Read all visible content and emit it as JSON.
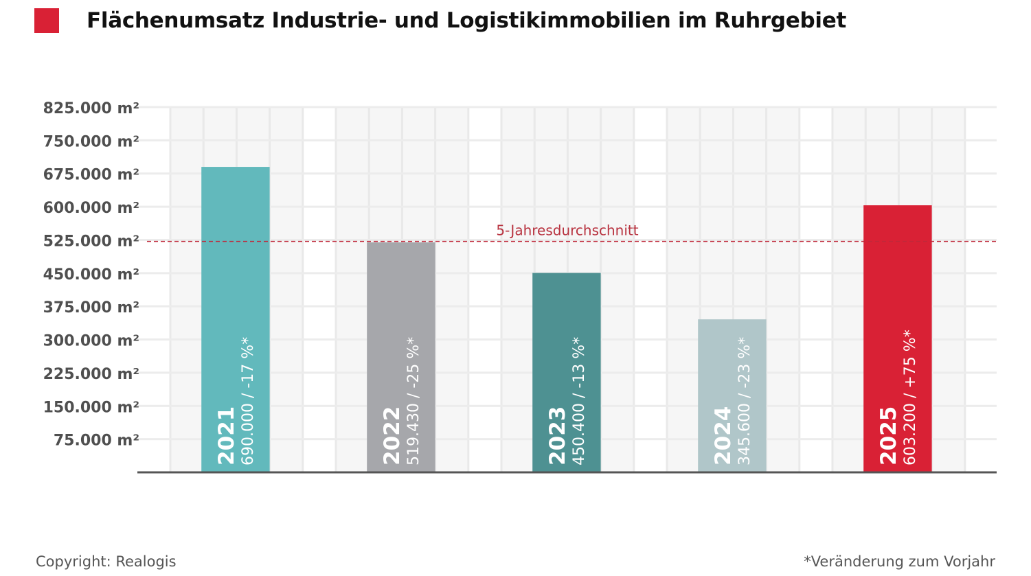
{
  "title": "Flächenumsatz Industrie- und Logistikimmobilien im Ruhrgebiet",
  "title_marker_color": "#d92135",
  "footer": {
    "copyright": "Copyright: Realogis",
    "note": "*Veränderung zum Vorjahr"
  },
  "chart_data": {
    "type": "bar",
    "title": "Flächenumsatz Industrie- und Logistikimmobilien im Ruhrgebiet",
    "xlabel": "",
    "ylabel": "",
    "unit": "m²",
    "ylim": [
      0,
      825000
    ],
    "yticks": [
      75000,
      150000,
      225000,
      300000,
      375000,
      450000,
      525000,
      600000,
      675000,
      750000,
      825000
    ],
    "ytick_labels": [
      "75.000 m²",
      "150.000 m²",
      "225.000 m²",
      "300.000 m²",
      "375.000 m²",
      "450.000 m²",
      "525.000 m²",
      "600.000 m²",
      "675.000 m²",
      "750.000 m²",
      "825.000 m²"
    ],
    "grid": true,
    "categories": [
      "2021",
      "2022",
      "2023",
      "2024",
      "2025"
    ],
    "values": [
      690000,
      519430,
      450400,
      345600,
      603200
    ],
    "value_labels": [
      "690.000 / -17 %*",
      "519.430 / -25 %*",
      "450.400 / -13 %*",
      "345.600 / -23 %*",
      "603.200 / +75 %*"
    ],
    "change_pct": [
      -17,
      -25,
      -13,
      -23,
      75
    ],
    "colors": [
      "#62b9bc",
      "#a6a7ab",
      "#4e9192",
      "#b0c6c9",
      "#d92135"
    ],
    "reference_line": {
      "label": "5-Jahresdurchschnitt",
      "value": 521726,
      "color": "#c0283a",
      "style": "dashed"
    }
  }
}
